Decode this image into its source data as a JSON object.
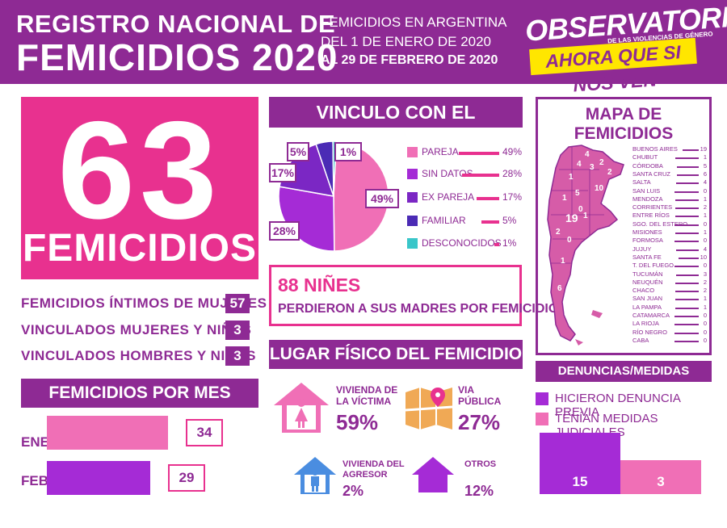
{
  "header": {
    "title_line1": "REGISTRO NACIONAL DE",
    "title_line2": "FEMICIDIOS 2020",
    "sub_line1": "FEMICIDIOS EN ARGENTINA",
    "sub_line2": "DEL 1 DE ENERO DE 2020",
    "sub_line3": "AL 29 DE FEBRERO DE 2020",
    "logo_line1": "OBSERVATORIO",
    "logo_line2": "DE LAS VIOLENCIAS DE GÉNERO",
    "logo_line3": "AHORA QUE SI NOS VEN"
  },
  "total": {
    "number": "63",
    "label": "FEMICIDIOS"
  },
  "breakdown": [
    {
      "label": "FEMICIDIOS ÍNTIMOS DE MUJERES",
      "value": "57"
    },
    {
      "label": "VINCULADOS MUJERES Y NIÑAS",
      "value": "3"
    },
    {
      "label": "VINCULADOS HOMBRES Y NIÑOS",
      "value": "3"
    }
  ],
  "por_mes": {
    "title": "FEMICIDIOS POR MES",
    "items": [
      {
        "label": "ENE",
        "value": "34",
        "color": "#f06fb6"
      },
      {
        "label": "FEB",
        "value": "29",
        "color": "#a52bd6"
      }
    ]
  },
  "vinculo": {
    "title": "VINCULO CON EL AGRESOR",
    "items": [
      {
        "label": "PAREJA",
        "value": "49%",
        "pct": 49,
        "color": "#f06fb6"
      },
      {
        "label": "SIN DATOS",
        "value": "28%",
        "pct": 28,
        "color": "#a52bd6"
      },
      {
        "label": "EX PAREJA",
        "value": "17%",
        "pct": 17,
        "color": "#7b27c4"
      },
      {
        "label": "FAMILIAR",
        "value": "5%",
        "pct": 5,
        "color": "#4b2bb5"
      },
      {
        "label": "DESCONOCIDOS",
        "value": "1%",
        "pct": 1,
        "color": "#39c6c9"
      }
    ]
  },
  "ninos": {
    "number": "88 NIÑES",
    "text": "PERDIERON A SUS MADRES POR FEMICIDIO"
  },
  "lugar": {
    "title": "LUGAR FÍSICO DEL FEMICIDIO",
    "items": [
      {
        "label_l1": "VIVIENDA DE",
        "label_l2": "LA VÍCTIMA",
        "value": "59%"
      },
      {
        "label_l1": "VIA",
        "label_l2": "PÚBLICA",
        "value": "27%"
      },
      {
        "label_l1": "VIVIENDA DEL",
        "label_l2": "AGRESOR",
        "value": "2%"
      },
      {
        "label_l1": "OTROS",
        "label_l2": "",
        "value": "12%"
      }
    ]
  },
  "mapa": {
    "title": "MAPA DE FEMICIDIOS",
    "provinces": [
      {
        "name": "BUENOS AIRES",
        "value": "19"
      },
      {
        "name": "CHUBUT",
        "value": "1"
      },
      {
        "name": "CÓRDOBA",
        "value": "5"
      },
      {
        "name": "SANTA CRUZ",
        "value": "6"
      },
      {
        "name": "SALTA",
        "value": "4"
      },
      {
        "name": "SAN LUIS",
        "value": "0"
      },
      {
        "name": "MENDOZA",
        "value": "1"
      },
      {
        "name": "CORRIENTES",
        "value": "2"
      },
      {
        "name": "ENTRE RÍOS",
        "value": "1"
      },
      {
        "name": "SGO. DEL ESTERO",
        "value": "0"
      },
      {
        "name": "MISIONES",
        "value": "1"
      },
      {
        "name": "FORMOSA",
        "value": "0"
      },
      {
        "name": "JUJUY",
        "value": "4"
      },
      {
        "name": "SANTA FE",
        "value": "10"
      },
      {
        "name": "T. DEL FUEGO",
        "value": "0"
      },
      {
        "name": "TUCUMÁN",
        "value": "3"
      },
      {
        "name": "NEUQUÉN",
        "value": "2"
      },
      {
        "name": "CHACO",
        "value": "2"
      },
      {
        "name": "SAN JUAN",
        "value": "1"
      },
      {
        "name": "LA PAMPA",
        "value": "1"
      },
      {
        "name": "CATAMARCA",
        "value": "0"
      },
      {
        "name": "LA RIOJA",
        "value": "0"
      },
      {
        "name": "RÍO NEGRO",
        "value": "0"
      },
      {
        "name": "CABA",
        "value": "0"
      }
    ],
    "map_labels": [
      "19",
      "10",
      "5",
      "6",
      "4",
      "4",
      "3",
      "2",
      "2",
      "2",
      "1",
      "1",
      "1",
      "1",
      "1",
      "0",
      "0"
    ]
  },
  "denuncias": {
    "title": "DENUNCIAS/MEDIDAS JUDICIALES",
    "items": [
      {
        "label": "HICIERON DENUNCIA PREVIA",
        "value": "15",
        "color": "#a52bd6"
      },
      {
        "label": "TENÍAN MEDIDAS JUDICIALES",
        "value": "3",
        "color": "#f06fb6"
      }
    ]
  }
}
